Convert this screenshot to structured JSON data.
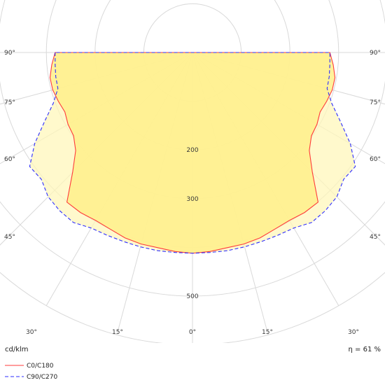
{
  "chart_data": {
    "type": "polar",
    "title": "",
    "unit_label": "cd/klm",
    "efficiency_label": "η = 61 %",
    "radial_range": [
      0,
      600
    ],
    "radial_tick_labels": [
      {
        "value": 200,
        "label": "200"
      },
      {
        "value": 300,
        "label": "300"
      },
      {
        "value": 500,
        "label": "500"
      }
    ],
    "angle_tick_labels": [
      {
        "angle": 90,
        "label": "90°",
        "placement": "left"
      },
      {
        "angle": 90,
        "label": "90°",
        "placement": "right"
      },
      {
        "angle": 75,
        "label": "75°",
        "placement": "left"
      },
      {
        "angle": 75,
        "label": "75°",
        "placement": "right"
      },
      {
        "angle": 60,
        "label": "60°",
        "placement": "left"
      },
      {
        "angle": 60,
        "label": "60°",
        "placement": "right"
      },
      {
        "angle": 45,
        "label": "45°",
        "placement": "left"
      },
      {
        "angle": 45,
        "label": "45°",
        "placement": "right"
      },
      {
        "angle": 30,
        "label": "30°",
        "placement": "bottom-left"
      },
      {
        "angle": 15,
        "label": "15°",
        "placement": "bottom-left"
      },
      {
        "angle": 0,
        "label": "0°",
        "placement": "bottom"
      },
      {
        "angle": 15,
        "label": "15°",
        "placement": "bottom-right"
      },
      {
        "angle": 30,
        "label": "30°",
        "placement": "bottom-right"
      }
    ],
    "grid": true,
    "legend_position": "bottom-left",
    "series": [
      {
        "name": "C0/C180",
        "color": "#ff3b3b",
        "line_style": "solid",
        "fill": "#fff08a",
        "angles": [
          0,
          5,
          10,
          15,
          20,
          25,
          30,
          35,
          40,
          45,
          50,
          55,
          60,
          65,
          70,
          75,
          80,
          85,
          90
        ],
        "values": [
          412,
          410,
          407,
          407,
          405,
          400,
          398,
          401,
          401,
          348,
          313,
          298,
          295,
          289,
          293,
          297,
          297,
          290,
          282
        ]
      },
      {
        "name": "C90/C270",
        "color": "#2c2cff",
        "line_style": "dashed",
        "fill": "#fff6b8",
        "angles": [
          0,
          5,
          10,
          15,
          20,
          25,
          30,
          35,
          40,
          45,
          50,
          55,
          60,
          65,
          70,
          75,
          80,
          85,
          90
        ],
        "values": [
          412,
          412,
          413,
          413,
          413,
          414,
          416,
          426,
          424,
          419,
          405,
          408,
          374,
          335,
          304,
          286,
          285,
          283,
          282
        ]
      }
    ]
  }
}
